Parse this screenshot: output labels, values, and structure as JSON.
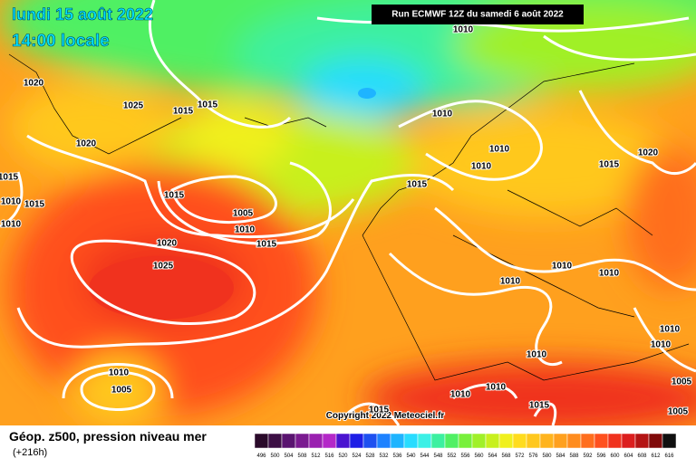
{
  "header": {
    "date": "lundi 15 août 2022",
    "time": "14:00 locale",
    "run": "Run ECMWF 12Z du samedi 6 août 2022"
  },
  "footer": {
    "title": "Géop. z500, pression niveau mer",
    "lead": "(+216h)",
    "copyright": "Copyright 2022 Meteociel.fr"
  },
  "isobar_labels": [
    1010,
    1020,
    1025,
    1015,
    1015,
    1020,
    1015,
    1010,
    1015,
    1010,
    1015,
    1005,
    1010,
    1015,
    1020,
    1025,
    1010,
    1010,
    1010,
    1015,
    1015,
    1020,
    1010,
    1010,
    1010,
    1010,
    1010,
    1010,
    1010,
    1005,
    1010,
    1010,
    1015,
    1015,
    1005,
    1005
  ],
  "scale": {
    "labels": [
      496,
      500,
      504,
      508,
      512,
      516,
      520,
      524,
      528,
      532,
      536,
      540,
      544,
      548,
      552,
      556,
      560,
      564,
      568,
      572,
      576,
      580,
      584,
      588,
      592,
      596,
      600,
      604,
      608,
      612,
      616
    ],
    "colors": [
      "#2a0a2a",
      "#3d0f45",
      "#5a1470",
      "#7a1a90",
      "#9a20b0",
      "#b428c8",
      "#4a14d0",
      "#1e1ee6",
      "#1e50f0",
      "#1e82ff",
      "#1eb4ff",
      "#28dcff",
      "#3cf0e6",
      "#3cf0a0",
      "#50f064",
      "#78f03c",
      "#a0f028",
      "#c8f01e",
      "#f0f01e",
      "#ffdc1e",
      "#ffc81e",
      "#ffb41e",
      "#ffa01e",
      "#ff8c1e",
      "#ff6e1e",
      "#ff501e",
      "#f0321e",
      "#dc1e1e",
      "#b41414",
      "#800a0a",
      "#101010"
    ]
  }
}
